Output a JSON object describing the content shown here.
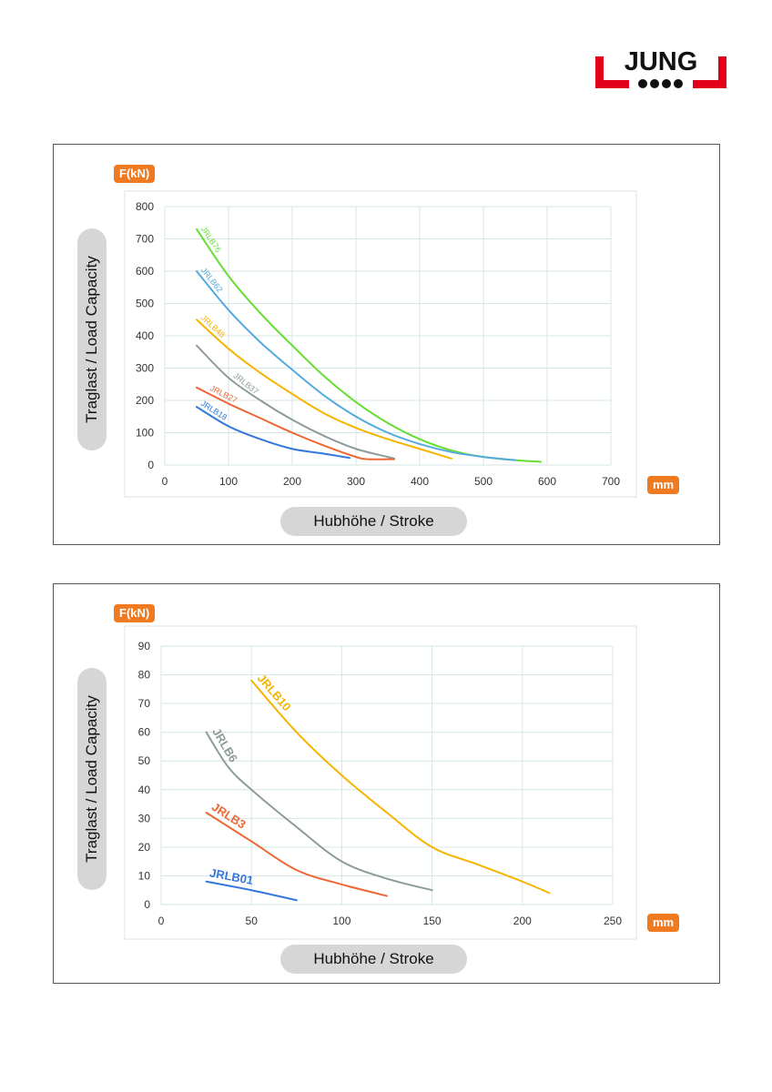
{
  "brand": {
    "name": "JUNG",
    "red": "#e3001b"
  },
  "chart_data": [
    {
      "type": "line",
      "ylabel": "Traglast / Load Capacity",
      "xlabel": "Hubhöhe / Stroke",
      "y_unit": "F(kN)",
      "x_unit": "mm",
      "xlim": [
        0,
        700
      ],
      "ylim": [
        0,
        800
      ],
      "x_ticks": [
        0,
        100,
        200,
        300,
        400,
        500,
        600,
        700
      ],
      "y_ticks": [
        0,
        100,
        200,
        300,
        400,
        500,
        600,
        700,
        800
      ],
      "grid": true,
      "series": [
        {
          "name": "JRLB76",
          "color": "#66dd33",
          "x": [
            50,
            100,
            150,
            200,
            250,
            300,
            350,
            400,
            450,
            500,
            550,
            590
          ],
          "y": [
            730,
            585,
            470,
            370,
            275,
            195,
            130,
            80,
            45,
            25,
            15,
            10
          ]
        },
        {
          "name": "JRLB62",
          "color": "#55aadd",
          "x": [
            50,
            100,
            150,
            200,
            250,
            300,
            350,
            400,
            450,
            500,
            550
          ],
          "y": [
            600,
            480,
            380,
            295,
            215,
            150,
            100,
            65,
            40,
            25,
            15
          ]
        },
        {
          "name": "JRLB48",
          "color": "#f5b400",
          "x": [
            50,
            100,
            150,
            200,
            250,
            300,
            350,
            400,
            450
          ],
          "y": [
            450,
            360,
            285,
            220,
            160,
            115,
            80,
            50,
            20
          ]
        },
        {
          "name": "JRLB37",
          "color": "#8c9c9a",
          "x": [
            50,
            100,
            150,
            200,
            250,
            300,
            350,
            360
          ],
          "y": [
            370,
            270,
            200,
            140,
            90,
            50,
            25,
            20
          ]
        },
        {
          "name": "JRLB27",
          "color": "#ee6633",
          "x": [
            50,
            100,
            150,
            200,
            250,
            300,
            320,
            360
          ],
          "y": [
            240,
            190,
            145,
            100,
            60,
            25,
            18,
            18
          ]
        },
        {
          "name": "JRLB18",
          "color": "#3377dd",
          "x": [
            50,
            100,
            150,
            200,
            250,
            290
          ],
          "y": [
            180,
            120,
            80,
            50,
            35,
            22
          ]
        }
      ]
    },
    {
      "type": "line",
      "ylabel": "Traglast / Load Capacity",
      "xlabel": "Hubhöhe / Stroke",
      "y_unit": "F(kN)",
      "x_unit": "mm",
      "xlim": [
        0,
        250
      ],
      "ylim": [
        0,
        90
      ],
      "x_ticks": [
        0,
        50,
        100,
        150,
        200,
        250
      ],
      "y_ticks": [
        0,
        10,
        20,
        30,
        40,
        50,
        60,
        70,
        80,
        90
      ],
      "grid": true,
      "series": [
        {
          "name": "JRLB10",
          "color": "#f5b400",
          "x": [
            50,
            75,
            100,
            125,
            150,
            175,
            200,
            215
          ],
          "y": [
            78,
            60,
            45,
            32,
            20,
            14,
            8,
            4
          ]
        },
        {
          "name": "JRLB6",
          "color": "#8c9c9a",
          "x": [
            25,
            37,
            50,
            75,
            100,
            125,
            150
          ],
          "y": [
            60,
            48,
            40,
            27,
            15,
            9,
            5
          ]
        },
        {
          "name": "JRLB3",
          "color": "#ee6633",
          "x": [
            25,
            50,
            75,
            100,
            125
          ],
          "y": [
            32,
            22,
            12,
            7,
            3
          ]
        },
        {
          "name": "JRLB01",
          "color": "#3377dd",
          "x": [
            25,
            50,
            75
          ],
          "y": [
            8,
            5,
            1.5
          ]
        }
      ]
    }
  ]
}
